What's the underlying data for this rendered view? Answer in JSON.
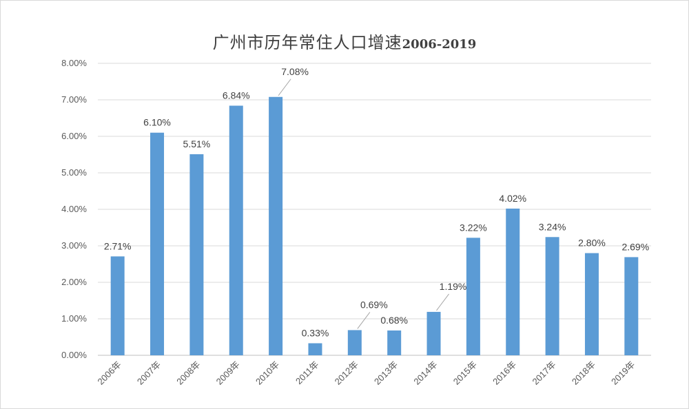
{
  "chart_data": {
    "type": "bar",
    "title_main": "广州市历年常住人口增速",
    "title_years": "2006-2019",
    "categories": [
      "2006年",
      "2007年",
      "2008年",
      "2009年",
      "2010年",
      "2011年",
      "2012年",
      "2013年",
      "2014年",
      "2015年",
      "2016年",
      "2017年",
      "2018年",
      "2019年"
    ],
    "values": [
      2.71,
      6.1,
      5.51,
      6.84,
      7.08,
      0.33,
      0.69,
      0.68,
      1.19,
      3.22,
      4.02,
      3.24,
      2.8,
      2.69
    ],
    "data_labels": [
      "2.71%",
      "6.10%",
      "5.51%",
      "6.84%",
      "7.08%",
      "0.33%",
      "0.69%",
      "0.68%",
      "1.19%",
      "3.22%",
      "4.02%",
      "3.24%",
      "2.80%",
      "2.69%"
    ],
    "y_ticks": [
      "0.00%",
      "1.00%",
      "2.00%",
      "3.00%",
      "4.00%",
      "5.00%",
      "6.00%",
      "7.00%",
      "8.00%"
    ],
    "ylim": [
      0,
      8
    ],
    "grid": true,
    "bar_color": "#5b9bd5",
    "xlabel": "",
    "ylabel": ""
  }
}
